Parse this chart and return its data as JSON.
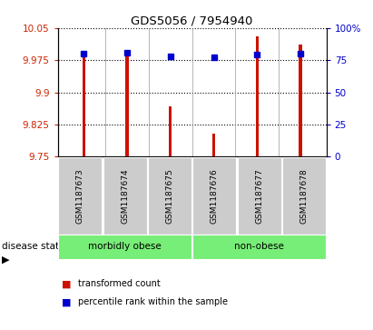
{
  "title": "GDS5056 / 7954940",
  "samples": [
    "GSM1187673",
    "GSM1187674",
    "GSM1187675",
    "GSM1187676",
    "GSM1187677",
    "GSM1187678"
  ],
  "red_values": [
    9.99,
    9.99,
    9.868,
    9.803,
    10.03,
    10.012
  ],
  "blue_values": [
    9.991,
    9.993,
    9.985,
    9.982,
    9.988,
    9.991
  ],
  "y_min": 9.75,
  "y_max": 10.05,
  "y_ticks": [
    9.75,
    9.825,
    9.9,
    9.975,
    10.05
  ],
  "y_tick_labels": [
    "9.75",
    "9.825",
    "9.9",
    "9.975",
    "10.05"
  ],
  "right_y_ticks": [
    0,
    25,
    50,
    75,
    100
  ],
  "right_y_labels": [
    "0",
    "25",
    "50",
    "75",
    "100%"
  ],
  "group_configs": [
    {
      "indices": [
        0,
        1,
        2
      ],
      "label": "morbidly obese"
    },
    {
      "indices": [
        3,
        4,
        5
      ],
      "label": "non-obese"
    }
  ],
  "bar_color": "#CC1100",
  "blue_color": "#0000CC",
  "bar_width": 0.07,
  "left_tick_color": "#CC2200",
  "right_tick_color": "#0000CC",
  "sample_box_color": "#CCCCCC",
  "group_box_color": "#77EE77",
  "legend_square_size": 7
}
